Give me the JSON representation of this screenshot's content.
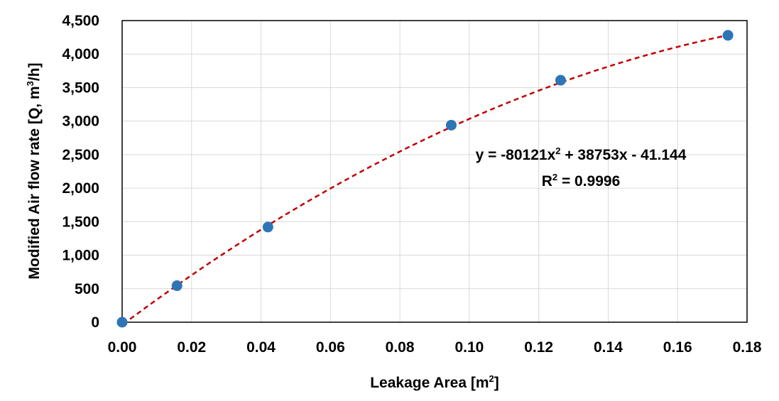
{
  "chart_data": {
    "type": "scatter",
    "title": "",
    "xlabel": "Leakage Area [m",
    "xlabel_sup": "2",
    "xlabel_end": "]",
    "ylabel": "Modified Air flow rate [Q, m",
    "ylabel_sup": "3",
    "ylabel_end": "/h]",
    "xlim": [
      0,
      0.18
    ],
    "ylim": [
      0,
      4500
    ],
    "x_ticks": [
      0,
      0.02,
      0.04,
      0.06,
      0.08,
      0.1,
      0.12,
      0.14,
      0.16,
      0.18
    ],
    "x_tick_labels": [
      "0.00",
      "0.02",
      "0.04",
      "0.06",
      "0.08",
      "0.10",
      "0.12",
      "0.14",
      "0.16",
      "0.18"
    ],
    "y_ticks": [
      0,
      500,
      1000,
      1500,
      2000,
      2500,
      3000,
      3500,
      4000,
      4500
    ],
    "y_tick_labels": [
      "0",
      "500",
      "1,000",
      "1,500",
      "2,000",
      "2,500",
      "3,000",
      "3,500",
      "4,000",
      "4,500"
    ],
    "grid": true,
    "series": [
      {
        "x": [
          0.0,
          0.0158,
          0.042,
          0.0948,
          0.1263,
          0.1745
        ],
        "y": [
          0,
          545,
          1420,
          2940,
          3610,
          4280
        ],
        "color": "#2e75b6"
      }
    ],
    "trendline": {
      "type": "polynomial",
      "a": -80121,
      "b": 38753,
      "c": -41.144,
      "x_range": [
        0.0,
        0.1745
      ],
      "color": "#c00000",
      "equation_parts": [
        "y = -80121x",
        "2",
        " + 38753x - 41.144"
      ],
      "r2_parts": [
        "R",
        "2",
        " = 0.9996"
      ]
    }
  }
}
